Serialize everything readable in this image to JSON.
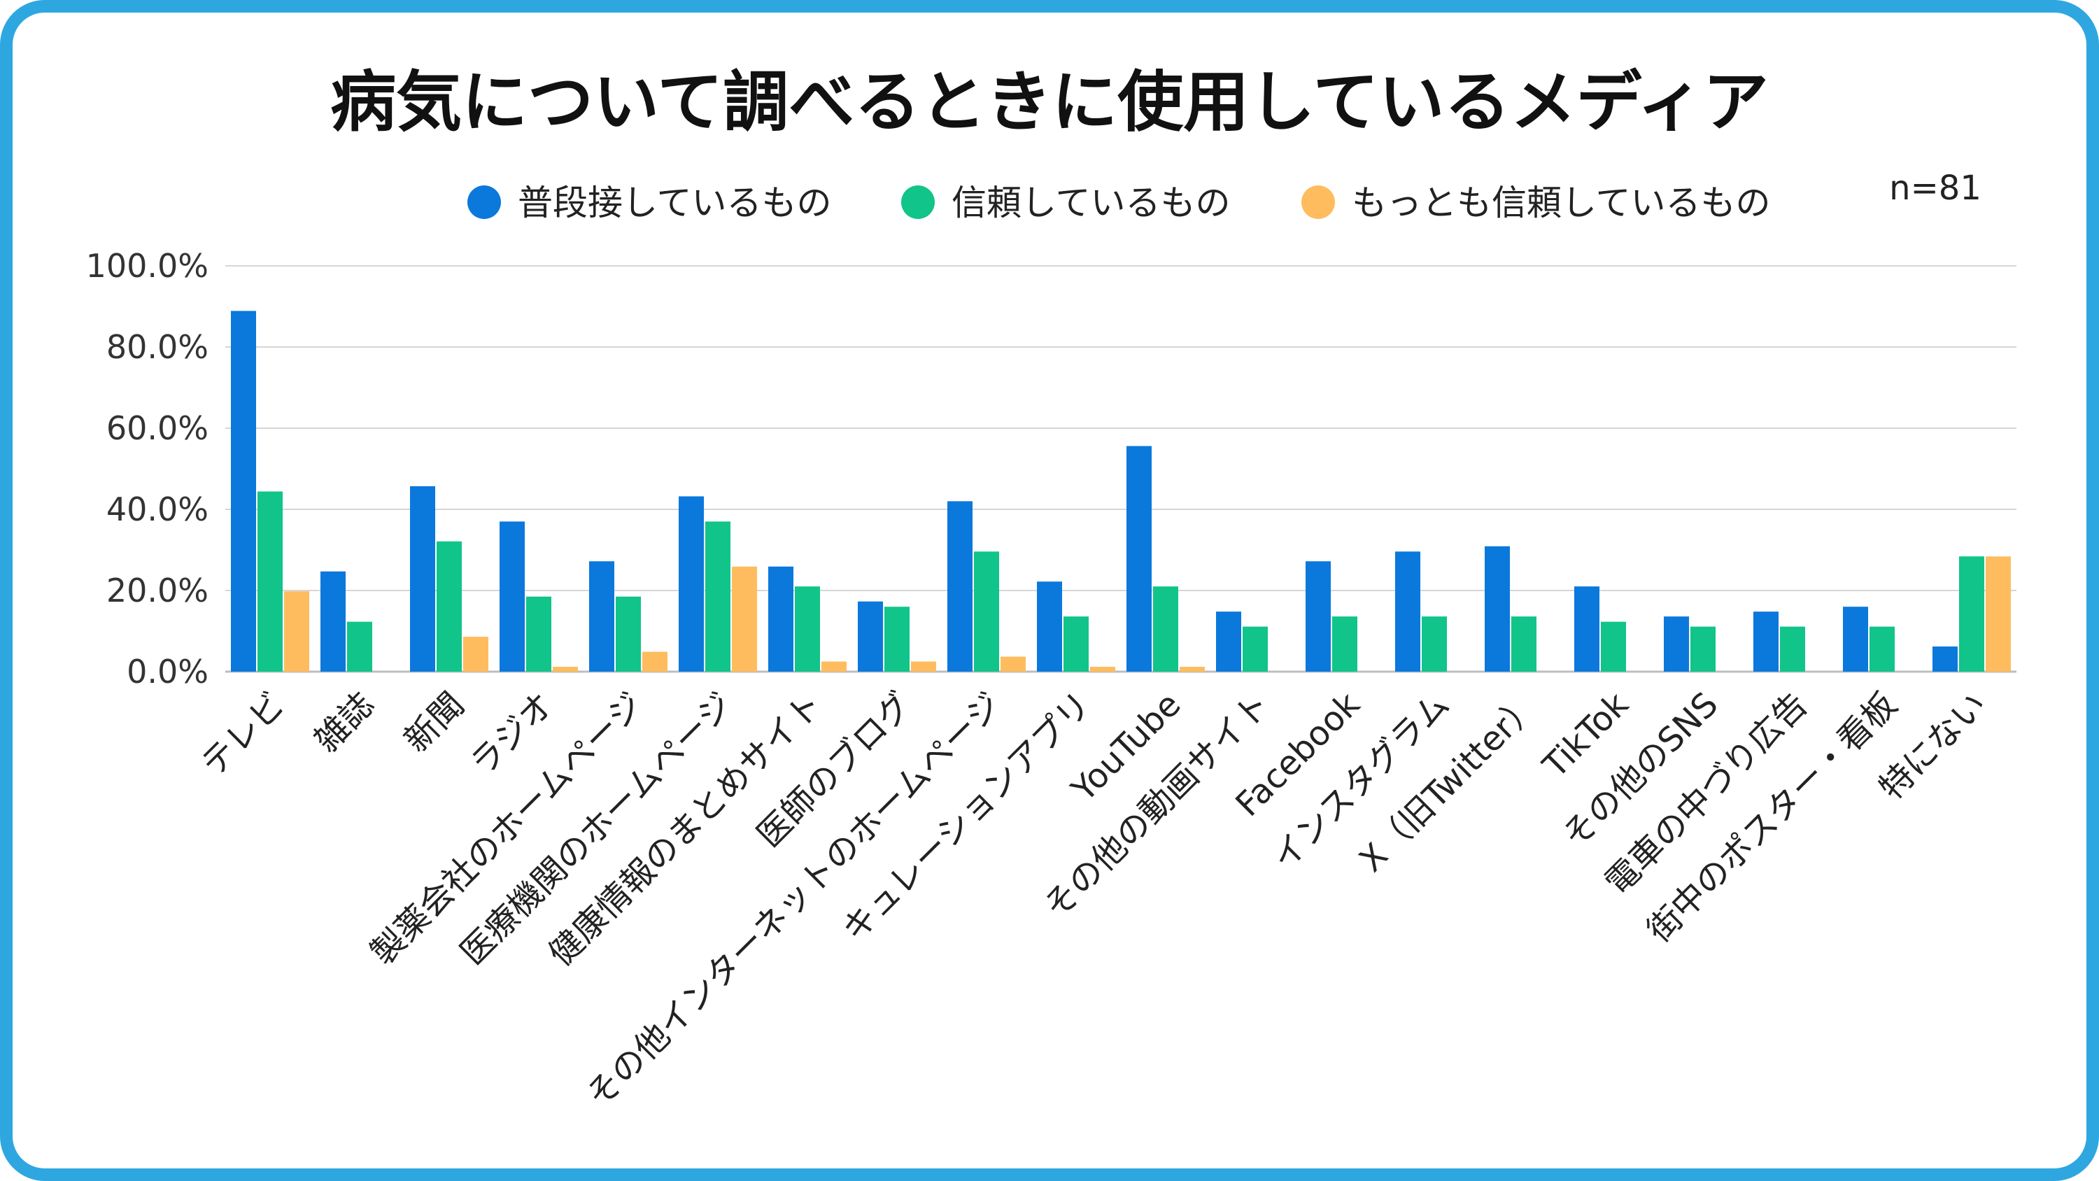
{
  "chart_data": {
    "type": "bar",
    "title": "病気について調べるときに使用しているメディア",
    "note": "n=81",
    "xlabel": "",
    "ylabel": "",
    "ylim": [
      0,
      100
    ],
    "yticks": [
      "0.0%",
      "20.0%",
      "40.0%",
      "60.0%",
      "80.0%",
      "100.0%"
    ],
    "grid": true,
    "legend_position": "top",
    "categories": [
      "テレビ",
      "雑誌",
      "新聞",
      "ラジオ",
      "製薬会社のホームページ",
      "医療機関のホームページ",
      "健康情報のまとめサイト",
      "医師のブログ",
      "その他インターネットのホームページ",
      "キュレーションアプリ",
      "YouTube",
      "その他の動画サイト",
      "Facebook",
      "インスタグラム",
      "X（旧Twitter）",
      "TikTok",
      "その他のSNS",
      "電車の中づり広告",
      "街中のポスター・看板",
      "特にない"
    ],
    "series": [
      {
        "name": "普段接しているもの",
        "color": "#0b78dc",
        "values": [
          88.9,
          24.7,
          45.7,
          37.0,
          27.2,
          43.2,
          25.9,
          17.3,
          42.0,
          22.2,
          55.6,
          14.8,
          27.2,
          29.6,
          30.9,
          21.0,
          13.6,
          14.8,
          16.0,
          6.2
        ]
      },
      {
        "name": "信頼しているもの",
        "color": "#11c48a",
        "values": [
          44.4,
          12.3,
          32.1,
          18.5,
          18.5,
          37.0,
          21.0,
          16.0,
          29.6,
          13.6,
          21.0,
          11.1,
          13.6,
          13.6,
          13.6,
          12.3,
          11.1,
          11.1,
          11.1,
          28.4
        ]
      },
      {
        "name": "もっとも信頼しているもの",
        "color": "#ffbc5e",
        "values": [
          19.8,
          0,
          8.6,
          1.2,
          4.9,
          25.9,
          2.5,
          2.5,
          3.7,
          1.2,
          1.2,
          0,
          0,
          0,
          0,
          0,
          0,
          0,
          0,
          28.4
        ]
      }
    ]
  }
}
